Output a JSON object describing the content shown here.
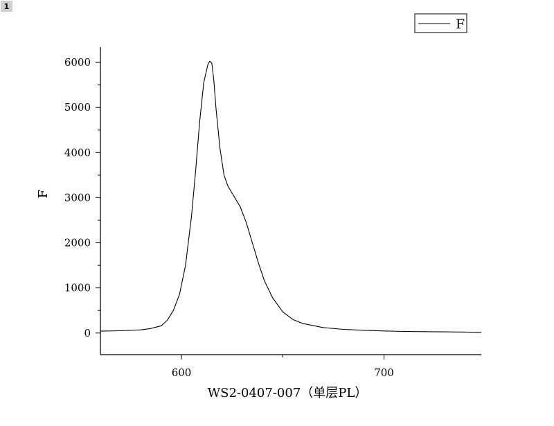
{
  "page_badge": "1",
  "chart_data": {
    "type": "line",
    "title": "",
    "xlabel": "WS2-0407-007（单层PL）",
    "ylabel": "F",
    "xlim": [
      560,
      748
    ],
    "ylim": [
      -480,
      6340
    ],
    "x_ticks": [
      600,
      700
    ],
    "y_ticks": [
      0,
      1000,
      2000,
      3000,
      4000,
      5000,
      6000
    ],
    "y_minor_step": 500,
    "x_minor_step": 50,
    "grid": false,
    "legend": {
      "position": "top-right",
      "entries": [
        "F"
      ]
    },
    "series": [
      {
        "name": "F",
        "color": "#000000",
        "x": [
          560,
          570,
          580,
          585,
          590,
          593,
          596,
          599,
          602,
          605,
          607,
          609,
          611,
          613,
          614,
          615,
          616,
          617,
          619,
          621,
          623,
          625,
          627,
          629,
          632,
          635,
          638,
          641,
          645,
          650,
          655,
          660,
          670,
          680,
          690,
          700,
          710,
          720,
          730,
          740,
          748
        ],
        "y": [
          40,
          50,
          70,
          100,
          160,
          280,
          500,
          850,
          1500,
          2600,
          3600,
          4700,
          5550,
          5950,
          6030,
          5980,
          5600,
          5000,
          4100,
          3500,
          3250,
          3100,
          2950,
          2800,
          2450,
          2000,
          1550,
          1150,
          780,
          470,
          300,
          210,
          120,
          80,
          60,
          45,
          35,
          30,
          25,
          20,
          15
        ]
      }
    ]
  }
}
